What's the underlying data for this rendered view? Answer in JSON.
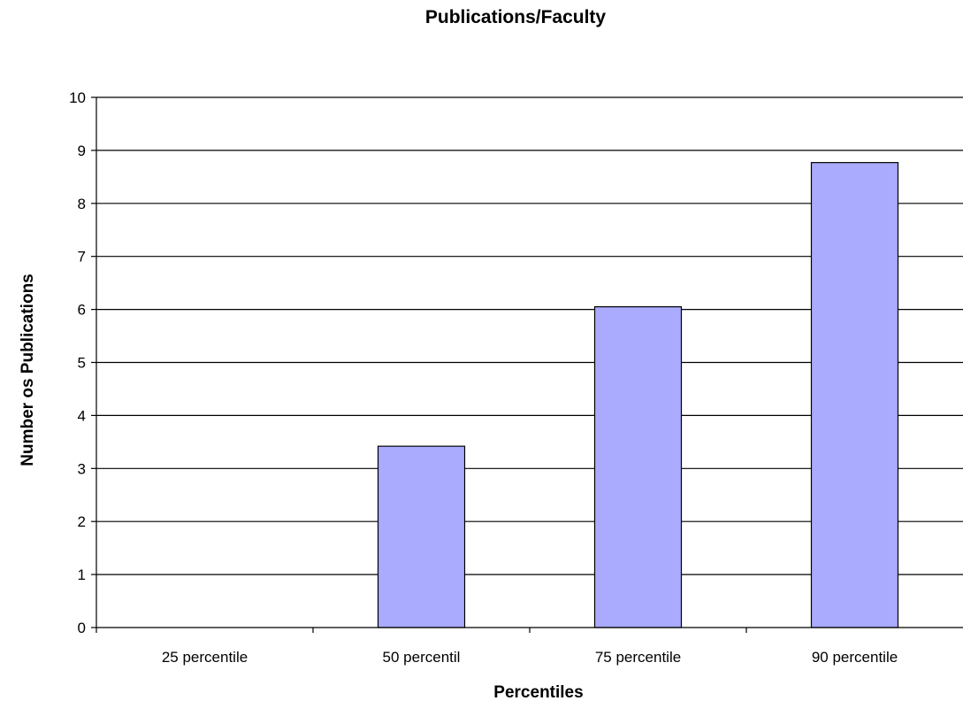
{
  "chart_data": {
    "type": "bar",
    "title": "Publications/Faculty",
    "xlabel": "Percentiles",
    "ylabel": "Number os Publications",
    "categories": [
      "25 percentile",
      "50 percentil",
      "75 percentile",
      "90 percentile"
    ],
    "values": [
      0,
      3.42,
      6.05,
      8.77
    ],
    "ylim": [
      0,
      10
    ],
    "yticks": [
      "0",
      "1",
      "2",
      "3",
      "4",
      "5",
      "6",
      "7",
      "8",
      "9",
      "10"
    ],
    "grid": true,
    "legend": "none",
    "bar_color": "#aaaaff"
  }
}
